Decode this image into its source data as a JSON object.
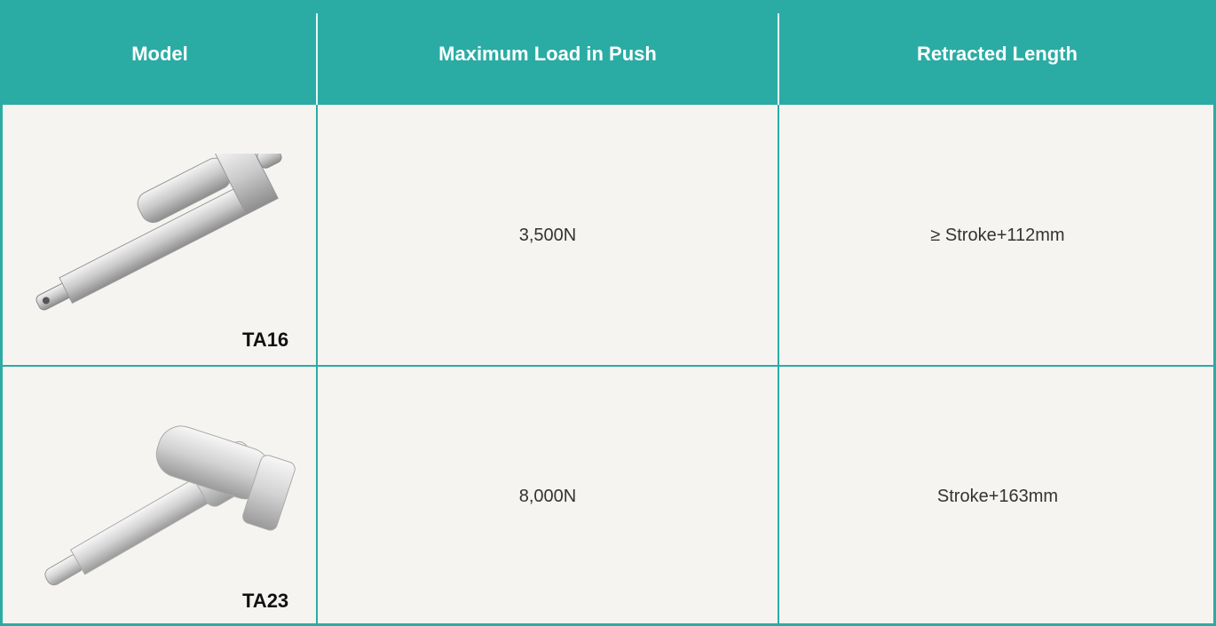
{
  "table": {
    "header": [
      "Model",
      "Maximum Load in Push",
      "Retracted Length"
    ],
    "rows": [
      [
        "TA16",
        "3,500N",
        "≥ Stroke+112mm"
      ],
      [
        "TA23",
        "8,000N",
        "Stroke+163mm"
      ]
    ]
  }
}
